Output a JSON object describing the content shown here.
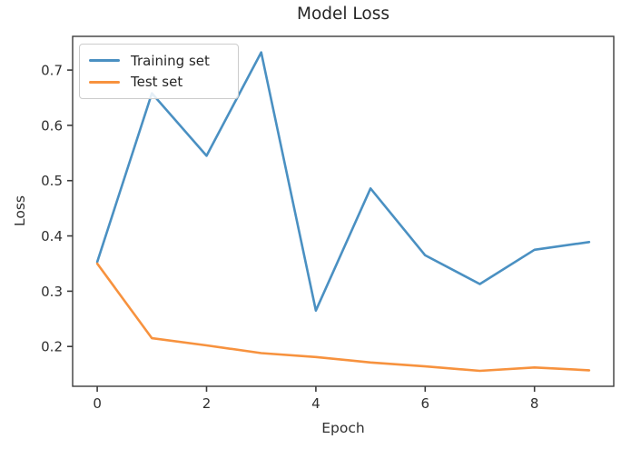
{
  "chart_data": {
    "type": "line",
    "title": "Model Loss",
    "xlabel": "Epoch",
    "ylabel": "Loss",
    "x": [
      0,
      1,
      2,
      3,
      4,
      5,
      6,
      7,
      8,
      9
    ],
    "series": [
      {
        "name": "Training set",
        "color": "#4a90c2",
        "values": [
          0.353,
          0.658,
          0.545,
          0.732,
          0.265,
          0.486,
          0.365,
          0.313,
          0.375,
          0.389
        ]
      },
      {
        "name": "Test set",
        "color": "#f7923e",
        "values": [
          0.35,
          0.215,
          0.202,
          0.188,
          0.181,
          0.171,
          0.164,
          0.156,
          0.162,
          0.157
        ]
      }
    ],
    "xlim": [
      -0.45,
      9.45
    ],
    "ylim": [
      0.128,
      0.761
    ],
    "xticks": [
      0,
      2,
      4,
      6,
      8
    ],
    "xtick_labels": [
      "0",
      "2",
      "4",
      "6",
      "8"
    ],
    "yticks": [
      0.2,
      0.3,
      0.4,
      0.5,
      0.6,
      0.7
    ],
    "ytick_labels": [
      "0.2",
      "0.3",
      "0.4",
      "0.5",
      "0.6",
      "0.7"
    ],
    "grid": false,
    "legend_position": "upper-left",
    "axis_color": "#3c3c3c",
    "text_color": "#303030",
    "line_width": 2.6
  }
}
